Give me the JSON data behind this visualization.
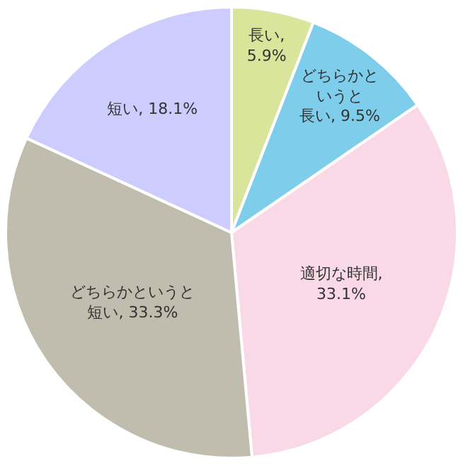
{
  "chart_data": {
    "type": "pie",
    "categories": [
      null,
      null,
      null,
      null,
      null
    ],
    "values": [
      5.9,
      9.5,
      33.1,
      33.3,
      18.1
    ],
    "colors": [
      "#d9e59b",
      "#7dcdeb",
      "#f9d9e6",
      "#c0bdae",
      "#ccccff"
    ],
    "value_labels": [
      "長い, 5.9%",
      "どちらかというと長い, 9.5%",
      "適切な時間, 33.1%",
      "どちらかというと短い, 33.3%",
      "短い, 18.1%"
    ],
    "legend": false
  }
}
